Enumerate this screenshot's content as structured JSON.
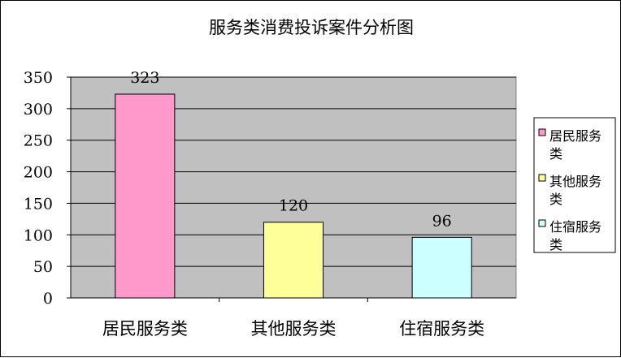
{
  "chart_data": {
    "type": "bar",
    "title": "服务类消费投诉案件分析图",
    "categories": [
      "居民服务类",
      "其他服务类",
      "住宿服务类"
    ],
    "values": [
      323,
      120,
      96
    ],
    "data_labels": [
      "323",
      "120",
      "96"
    ],
    "colors": [
      "#ff99cc",
      "#ffff99",
      "#ccffff"
    ],
    "ylim": [
      0,
      350
    ],
    "yticks": [
      0,
      50,
      100,
      150,
      200,
      250,
      300,
      350
    ],
    "ytick_labels": [
      "0",
      "50",
      "100",
      "150",
      "200",
      "250",
      "300",
      "350"
    ],
    "grid": true,
    "plot_background": "#c0c0c0",
    "legend": {
      "placement": "right",
      "entries": [
        {
          "line1": "居民服务",
          "line2": "类"
        },
        {
          "line1": "其他服务",
          "line2": "类"
        },
        {
          "line1": "住宿服务",
          "line2": "类"
        }
      ]
    }
  }
}
